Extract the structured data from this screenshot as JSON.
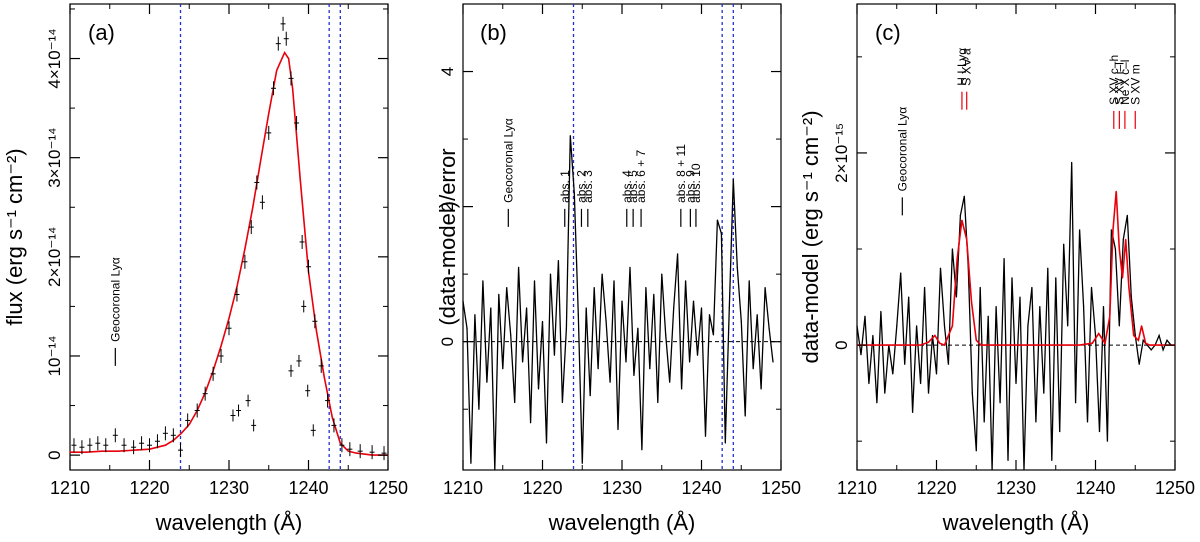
{
  "chart_data": [
    {
      "type": "line",
      "panel_label": "(a)",
      "xlabel": "wavelength (Å)",
      "ylabel": "flux (erg s⁻¹ cm⁻²)",
      "xlim": [
        1210,
        1250
      ],
      "ylim": [
        -0.15,
        4.55
      ],
      "y_unit_exponent": "-14",
      "x_ticks": [
        1210,
        1220,
        1230,
        1240,
        1250
      ],
      "y_ticks": [
        0,
        1,
        2,
        3,
        4
      ],
      "y_tick_labels": [
        "0",
        "10⁻¹⁴",
        "2×10⁻¹⁴",
        "3×10⁻¹⁴",
        "4×10⁻¹⁴"
      ],
      "vlines": [
        1223.9,
        1242.6,
        1244.0
      ],
      "annotations": [
        {
          "text": "Geocoronal Lyα",
          "x": 1215.7,
          "y": 0.9
        }
      ],
      "series": [
        {
          "kind": "model",
          "x": [
            1210,
            1212,
            1214,
            1216,
            1218,
            1220,
            1222,
            1223,
            1224,
            1225,
            1226,
            1227,
            1228,
            1229,
            1230,
            1231,
            1232,
            1233,
            1234,
            1235,
            1236,
            1237,
            1237.5,
            1238,
            1239,
            1240,
            1241,
            1242,
            1243,
            1244,
            1245,
            1246,
            1247,
            1248,
            1250
          ],
          "y": [
            0.03,
            0.03,
            0.04,
            0.04,
            0.05,
            0.06,
            0.1,
            0.15,
            0.22,
            0.31,
            0.45,
            0.63,
            0.85,
            1.1,
            1.38,
            1.7,
            2.08,
            2.5,
            2.98,
            3.45,
            3.88,
            4.06,
            4.0,
            3.7,
            2.75,
            1.85,
            1.25,
            0.78,
            0.38,
            0.12,
            0.04,
            0.02,
            0.01,
            0.0,
            0.0
          ]
        },
        {
          "kind": "data",
          "x": [
            1210.5,
            1211.5,
            1212.5,
            1213.5,
            1214.5,
            1215.7,
            1216.8,
            1218,
            1219,
            1220,
            1221,
            1222,
            1223,
            1223.9,
            1224.8,
            1226,
            1227,
            1228,
            1229,
            1230,
            1231,
            1232,
            1232.8,
            1233.5,
            1234.2,
            1235,
            1235.6,
            1236.2,
            1236.8,
            1237.2,
            1237.8,
            1238.5,
            1239.2,
            1240,
            1240.8,
            1241.6,
            1242.4,
            1243.2,
            1244.2,
            1245.2,
            1246.5,
            1248,
            1249.5
          ],
          "y": [
            0.1,
            0.08,
            0.1,
            0.12,
            0.1,
            0.2,
            0.1,
            0.08,
            0.12,
            0.1,
            0.14,
            0.22,
            0.2,
            0.05,
            0.35,
            0.45,
            0.62,
            0.82,
            1.0,
            1.28,
            1.62,
            1.95,
            2.3,
            2.75,
            2.55,
            3.25,
            3.7,
            4.15,
            4.35,
            4.2,
            3.8,
            3.35,
            2.15,
            1.9,
            1.35,
            0.9,
            0.55,
            0.3,
            0.1,
            0.06,
            0.04,
            0.03,
            0.02
          ]
        },
        {
          "kind": "absorbed",
          "x": [
            1230.5,
            1231.2,
            1232.4,
            1233.1,
            1237.8,
            1238.8,
            1239.4,
            1239.9,
            1240.6
          ],
          "y": [
            0.4,
            0.45,
            0.55,
            0.3,
            0.85,
            0.95,
            1.5,
            0.65,
            0.25
          ]
        }
      ]
    },
    {
      "type": "line",
      "panel_label": "(b)",
      "xlabel": "wavelength (Å)",
      "ylabel": "(data-model)/error",
      "xlim": [
        1210,
        1250
      ],
      "ylim": [
        -1.9,
        5.0
      ],
      "x_ticks": [
        1210,
        1220,
        1230,
        1240,
        1250
      ],
      "y_ticks": [
        0,
        2,
        4
      ],
      "y_tick_labels": [
        "0",
        "2",
        "4"
      ],
      "vlines": [
        1223.9,
        1242.6,
        1244.0
      ],
      "annotations": [
        {
          "text": "Geocoronal Lyα",
          "x": 1215.7,
          "y": 1.7
        },
        {
          "text": "abs. 1",
          "x": 1222.8,
          "y": 1.7
        },
        {
          "text": "abs. 2",
          "x": 1224.9,
          "y": 1.7
        },
        {
          "text": "abs. 3",
          "x": 1225.7,
          "y": 1.7
        },
        {
          "text": "abs. 4",
          "x": 1230.6,
          "y": 1.7
        },
        {
          "text": "abs. 5",
          "x": 1231.4,
          "y": 1.7
        },
        {
          "text": "abs. 6 + 7",
          "x": 1232.4,
          "y": 1.7
        },
        {
          "text": "abs. 8 + 11",
          "x": 1237.4,
          "y": 1.7
        },
        {
          "text": "abs. 9",
          "x": 1238.6,
          "y": 1.7
        },
        {
          "text": "abs. 10",
          "x": 1239.3,
          "y": 1.7
        }
      ],
      "series": [
        {
          "kind": "residual",
          "x": [
            1210,
            1210.5,
            1211,
            1211.5,
            1212,
            1212.5,
            1213,
            1213.5,
            1214,
            1214.5,
            1215,
            1215.5,
            1216,
            1216.5,
            1217,
            1217.5,
            1218,
            1218.5,
            1219,
            1219.5,
            1220,
            1220.5,
            1221,
            1221.5,
            1222,
            1222.5,
            1223,
            1223.5,
            1224,
            1224.5,
            1225,
            1225.5,
            1226,
            1226.5,
            1227,
            1227.5,
            1228,
            1228.5,
            1229,
            1229.5,
            1230,
            1230.5,
            1231,
            1231.5,
            1232,
            1232.5,
            1233,
            1233.5,
            1234,
            1234.5,
            1235,
            1235.5,
            1236,
            1236.5,
            1237,
            1237.5,
            1238,
            1238.5,
            1239,
            1239.5,
            1240,
            1240.5,
            1241,
            1241.5,
            1242,
            1242.5,
            1243,
            1243.5,
            1244,
            1244.5,
            1245,
            1245.5,
            1246,
            1246.5,
            1247,
            1247.5,
            1248,
            1248.5,
            1249
          ],
          "y": [
            0.6,
            0.2,
            -1.8,
            0.4,
            -1.0,
            0.9,
            -0.6,
            0.5,
            -1.9,
            0.7,
            -0.4,
            0.8,
            0.1,
            -0.9,
            1.1,
            -0.3,
            0.5,
            -1.2,
            0.9,
            -0.7,
            0.3,
            -1.5,
            1.0,
            -0.2,
            1.2,
            -0.9,
            0.2,
            3.05,
            2.2,
            0.4,
            -1.8,
            0.5,
            -0.8,
            0.8,
            -0.4,
            1.0,
            0.3,
            -0.6,
            0.9,
            -1.3,
            0.6,
            -0.3,
            1.1,
            -0.5,
            0.2,
            -1.6,
            0.8,
            -0.4,
            0.7,
            -0.9,
            1.0,
            0.1,
            -0.6,
            0.5,
            1.3,
            -0.7,
            0.9,
            -0.3,
            0.6,
            -0.2,
            0.5,
            -1.4,
            0.4,
            0.1,
            1.8,
            1.6,
            -1.5,
            0.5,
            2.4,
            1.1,
            0.3,
            -1.1,
            0.9,
            -0.4,
            0.4,
            -0.7,
            0.8,
            0.2,
            -0.3
          ]
        }
      ]
    },
    {
      "type": "line",
      "panel_label": "(c)",
      "xlabel": "wavelength (Å)",
      "ylabel": "data-model (erg s⁻¹ cm⁻²)",
      "xlim": [
        1210,
        1250
      ],
      "ylim": [
        -1.3,
        3.55
      ],
      "y_unit_exponent": "-15",
      "x_ticks": [
        1210,
        1220,
        1230,
        1240,
        1250
      ],
      "y_ticks": [
        0,
        2
      ],
      "y_tick_labels": [
        "0",
        "2×10⁻¹⁵"
      ],
      "vlines": [],
      "annotations": [
        {
          "text": "Geocoronal Lyα",
          "x": 1215.7,
          "y": 1.35,
          "color": "#000000"
        },
        {
          "text": "H I Lyα",
          "x": 1223.2,
          "y": 2.45,
          "color": "#e8000b"
        },
        {
          "text": "S XV a",
          "x": 1223.8,
          "y": 2.45,
          "color": "#e8000b"
        },
        {
          "text": "S XV c–h",
          "x": 1242.3,
          "y": 2.25,
          "color": "#e8000b"
        },
        {
          "text": "S XV i–l",
          "x": 1243.0,
          "y": 2.25,
          "color": "#e8000b"
        },
        {
          "text": "Ne X c–l",
          "x": 1243.7,
          "y": 2.25,
          "color": "#e8000b"
        },
        {
          "text": "S XV m",
          "x": 1245.0,
          "y": 2.25,
          "color": "#e8000b"
        }
      ],
      "series": [
        {
          "kind": "residual",
          "x": [
            1210,
            1210.5,
            1211,
            1211.5,
            1212,
            1212.5,
            1213,
            1213.5,
            1214,
            1214.5,
            1215,
            1215.5,
            1216,
            1216.5,
            1217,
            1217.5,
            1218,
            1218.5,
            1219,
            1219.5,
            1220,
            1220.5,
            1221,
            1221.5,
            1222,
            1222.5,
            1223,
            1223.5,
            1224,
            1224.5,
            1225,
            1225.5,
            1226,
            1226.5,
            1227,
            1227.5,
            1228,
            1228.5,
            1229,
            1229.5,
            1230,
            1230.5,
            1231,
            1231.5,
            1232,
            1232.5,
            1233,
            1233.5,
            1234,
            1234.5,
            1235,
            1235.5,
            1236,
            1236.5,
            1237,
            1237.5,
            1238,
            1238.5,
            1239,
            1239.5,
            1240,
            1240.5,
            1241,
            1241.5,
            1242,
            1242.5,
            1243,
            1243.5,
            1244,
            1244.5,
            1245,
            1245.5,
            1246,
            1246.5,
            1247,
            1247.5,
            1248,
            1248.5,
            1249,
            1249.5,
            1250
          ],
          "y": [
            0.2,
            -0.1,
            0.3,
            -0.4,
            0.1,
            -0.6,
            0.35,
            -0.5,
            0.0,
            -0.3,
            0.2,
            0.75,
            -0.2,
            0.5,
            -0.7,
            0.2,
            -0.4,
            0.6,
            -0.5,
            0.1,
            -0.3,
            0.8,
            0.2,
            -0.2,
            1.0,
            0.5,
            1.35,
            1.55,
            0.8,
            -0.5,
            -1.1,
            0.6,
            -0.8,
            0.3,
            -1.3,
            0.4,
            -0.6,
            0.9,
            -1.2,
            0.7,
            -0.4,
            0.5,
            -1.3,
            0.2,
            0.6,
            -0.8,
            0.4,
            -0.5,
            0.8,
            -1.2,
            0.7,
            -0.9,
            1.05,
            0.2,
            1.9,
            -0.6,
            1.2,
            0.4,
            -0.8,
            0.6,
            0.1,
            -0.9,
            0.4,
            -1.0,
            1.2,
            1.0,
            0.2,
            1.1,
            1.35,
            0.5,
            0.1,
            -0.2,
            0.05,
            0.0,
            -0.05,
            0.0,
            0.1,
            -0.05,
            0.05,
            0.0,
            0.0
          ]
        },
        {
          "kind": "model",
          "x": [
            1210,
            1218,
            1219,
            1219.8,
            1220.4,
            1221,
            1222,
            1222.6,
            1223.2,
            1223.8,
            1224.4,
            1225,
            1225.6,
            1226.2,
            1238,
            1239.6,
            1240.4,
            1241.2,
            1241.8,
            1242.2,
            1242.6,
            1243,
            1243.4,
            1243.8,
            1244.2,
            1244.8,
            1245.4,
            1245.8,
            1246.3,
            1246.8,
            1247.4,
            1250
          ],
          "y": [
            0.0,
            0.0,
            0.03,
            0.1,
            0.02,
            0.0,
            0.2,
            0.9,
            1.3,
            1.1,
            0.45,
            0.05,
            0.0,
            0.0,
            0.0,
            0.02,
            0.12,
            0.02,
            0.3,
            1.2,
            1.6,
            1.0,
            0.7,
            1.1,
            0.6,
            0.1,
            0.05,
            0.2,
            0.02,
            0.0,
            0.0,
            0.0
          ]
        }
      ]
    }
  ]
}
